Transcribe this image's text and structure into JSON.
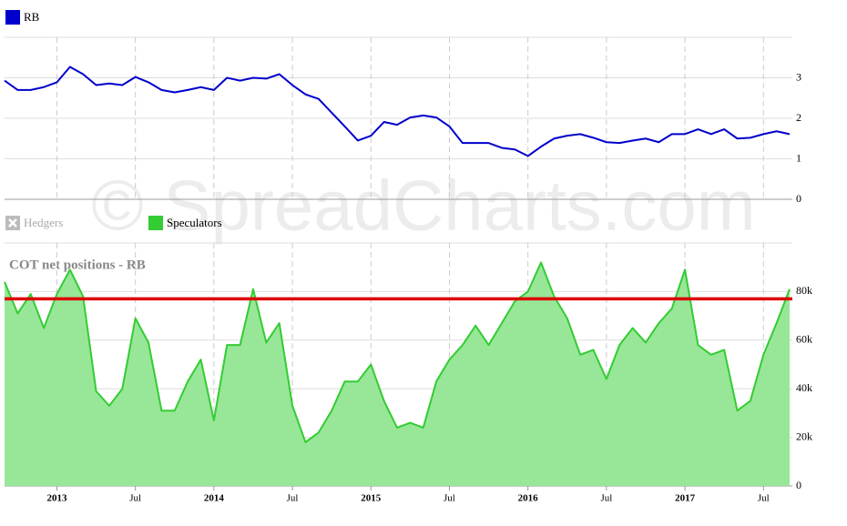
{
  "watermark": "© SpreadCharts.com",
  "chart_data": [
    {
      "type": "line",
      "x": [
        "2012-09",
        "2012-10",
        "2012-11",
        "2012-12",
        "2013-01",
        "2013-02",
        "2013-03",
        "2013-04",
        "2013-05",
        "2013-06",
        "2013-07",
        "2013-08",
        "2013-09",
        "2013-10",
        "2013-11",
        "2013-12",
        "2014-01",
        "2014-02",
        "2014-03",
        "2014-04",
        "2014-05",
        "2014-06",
        "2014-07",
        "2014-08",
        "2014-09",
        "2014-10",
        "2014-11",
        "2014-12",
        "2015-01",
        "2015-02",
        "2015-03",
        "2015-04",
        "2015-05",
        "2015-06",
        "2015-07",
        "2015-08",
        "2015-09",
        "2015-10",
        "2015-11",
        "2015-12",
        "2016-01",
        "2016-02",
        "2016-03",
        "2016-04",
        "2016-05",
        "2016-06",
        "2016-07",
        "2016-08",
        "2016-09",
        "2016-10",
        "2016-11",
        "2016-12",
        "2017-01",
        "2017-02",
        "2017-03",
        "2017-04",
        "2017-05",
        "2017-06",
        "2017-07",
        "2017-08",
        "2017-09"
      ],
      "series": [
        {
          "name": "RB",
          "color": "#0000cc",
          "values": [
            2.93,
            2.7,
            2.7,
            2.77,
            2.89,
            3.27,
            3.09,
            2.82,
            2.86,
            2.82,
            3.02,
            2.89,
            2.7,
            2.64,
            2.7,
            2.77,
            2.7,
            3.0,
            2.93,
            3.0,
            2.98,
            3.09,
            2.82,
            2.59,
            2.48,
            2.14,
            1.8,
            1.45,
            1.57,
            1.91,
            1.84,
            2.02,
            2.07,
            2.02,
            1.8,
            1.39,
            1.39,
            1.39,
            1.27,
            1.23,
            1.07,
            1.3,
            1.5,
            1.57,
            1.61,
            1.52,
            1.41,
            1.39,
            1.45,
            1.5,
            1.41,
            1.61,
            1.61,
            1.73,
            1.61,
            1.73,
            1.5,
            1.52,
            1.61,
            1.68,
            1.61
          ]
        }
      ],
      "xlim": [
        "2012-09",
        "2017-09"
      ],
      "ylim": [
        0,
        4
      ],
      "yticks": [
        0,
        1,
        2,
        3
      ],
      "grid": true
    },
    {
      "type": "area",
      "title": "COT net positions - RB",
      "x": [
        "2012-09",
        "2012-10",
        "2012-11",
        "2012-12",
        "2013-01",
        "2013-02",
        "2013-03",
        "2013-04",
        "2013-05",
        "2013-06",
        "2013-07",
        "2013-08",
        "2013-09",
        "2013-10",
        "2013-11",
        "2013-12",
        "2014-01",
        "2014-02",
        "2014-03",
        "2014-04",
        "2014-05",
        "2014-06",
        "2014-07",
        "2014-08",
        "2014-09",
        "2014-10",
        "2014-11",
        "2014-12",
        "2015-01",
        "2015-02",
        "2015-03",
        "2015-04",
        "2015-05",
        "2015-06",
        "2015-07",
        "2015-08",
        "2015-09",
        "2015-10",
        "2015-11",
        "2015-12",
        "2016-01",
        "2016-02",
        "2016-03",
        "2016-04",
        "2016-05",
        "2016-06",
        "2016-07",
        "2016-08",
        "2016-09",
        "2016-10",
        "2016-11",
        "2016-12",
        "2017-01",
        "2017-02",
        "2017-03",
        "2017-04",
        "2017-05",
        "2017-06",
        "2017-07",
        "2017-08",
        "2017-09"
      ],
      "series": [
        {
          "name": "Speculators",
          "color": "#33cc33",
          "fill": "#98e698",
          "values": [
            84000,
            71000,
            79000,
            65000,
            79000,
            89000,
            78000,
            39000,
            33000,
            40000,
            69000,
            59000,
            31000,
            31000,
            43000,
            52000,
            27000,
            58000,
            58000,
            81000,
            59000,
            67000,
            33000,
            18000,
            22000,
            31000,
            43000,
            43000,
            50000,
            35000,
            24000,
            26000,
            24000,
            43000,
            52000,
            58000,
            66000,
            58000,
            67000,
            76000,
            80000,
            92000,
            78000,
            69000,
            54000,
            56000,
            44000,
            58000,
            65000,
            59000,
            67000,
            73000,
            89000,
            58000,
            54000,
            56000,
            31000,
            35000,
            54000,
            67000,
            81000
          ]
        }
      ],
      "hidden_series": [
        {
          "name": "Hedgers",
          "color": "#bbbbbb"
        }
      ],
      "reference_line": {
        "value": 77000,
        "color": "#dd0000"
      },
      "xlim": [
        "2012-09",
        "2017-09"
      ],
      "xticks": [
        {
          "value": "2013-01",
          "label": "2013"
        },
        {
          "value": "2013-07",
          "label": "Jul"
        },
        {
          "value": "2014-01",
          "label": "2014"
        },
        {
          "value": "2014-07",
          "label": "Jul"
        },
        {
          "value": "2015-01",
          "label": "2015"
        },
        {
          "value": "2015-07",
          "label": "Jul"
        },
        {
          "value": "2016-01",
          "label": "2016"
        },
        {
          "value": "2016-07",
          "label": "Jul"
        },
        {
          "value": "2017-01",
          "label": "2017"
        },
        {
          "value": "2017-07",
          "label": "Jul"
        }
      ],
      "ylim": [
        0,
        100000
      ],
      "yticks": [
        0,
        {
          "value": 20000,
          "label": "20k"
        },
        {
          "value": 40000,
          "label": "40k"
        },
        {
          "value": 60000,
          "label": "60k"
        },
        {
          "value": 80000,
          "label": "80k"
        }
      ],
      "grid": true
    }
  ]
}
